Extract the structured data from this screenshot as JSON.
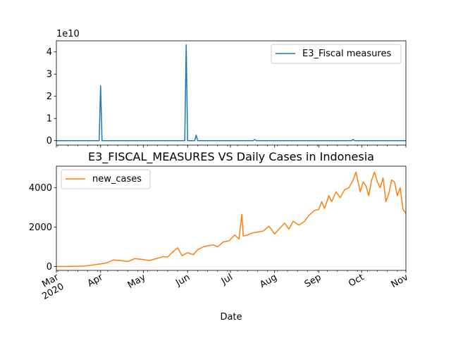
{
  "chart_data": [
    {
      "type": "line",
      "panel": "top",
      "title": "",
      "scale_label": "1e10",
      "y_tick_labels": [
        "0",
        "1",
        "2",
        "3",
        "4"
      ],
      "y_ticks": [
        0,
        1,
        2,
        3,
        4
      ],
      "ylim": [
        -0.2,
        4.5
      ],
      "x_tick_labels": [
        "",
        "",
        "",
        "",
        "",
        "",
        "",
        "",
        ""
      ],
      "legend": {
        "position": "upper right"
      },
      "series": [
        {
          "name": "E3_Fiscal measures",
          "color": "#1f77b4",
          "x": [
            "2020-03-01",
            "2020-03-31",
            "2020-04-01",
            "2020-04-02",
            "2020-05-30",
            "2020-05-31",
            "2020-06-01",
            "2020-06-06",
            "2020-06-07",
            "2020-06-08",
            "2020-07-17",
            "2020-07-18",
            "2020-07-19",
            "2020-09-24",
            "2020-09-25",
            "2020-09-26",
            "2020-11-01"
          ],
          "values": [
            0,
            0,
            2.47,
            0,
            0,
            4.32,
            0,
            0,
            0.25,
            0,
            0,
            0.05,
            0,
            0,
            0.05,
            0,
            0
          ]
        }
      ]
    },
    {
      "type": "line",
      "panel": "bottom",
      "title": "E3_FISCAL_MEASURES VS Daily Cases in Indonesia",
      "xlabel": "Date",
      "y_tick_labels": [
        "0",
        "2000",
        "4000"
      ],
      "y_ticks": [
        0,
        2000,
        4000
      ],
      "ylim": [
        -200,
        5100
      ],
      "x_tick_labels": [
        "Mar\n2020",
        "Apr",
        "May",
        "Jun",
        "Jul",
        "Aug",
        "Sep",
        "Oct",
        "Nov"
      ],
      "x_tick_dates": [
        "2020-03-01",
        "2020-04-01",
        "2020-05-01",
        "2020-06-01",
        "2020-07-01",
        "2020-08-01",
        "2020-09-01",
        "2020-10-01",
        "2020-11-01"
      ],
      "legend": {
        "position": "upper left"
      },
      "series": [
        {
          "name": "new_cases",
          "color": "#ff7f0e",
          "x": [
            "2020-03-01",
            "2020-03-10",
            "2020-03-20",
            "2020-03-25",
            "2020-04-01",
            "2020-04-05",
            "2020-04-10",
            "2020-04-15",
            "2020-04-20",
            "2020-04-25",
            "2020-05-01",
            "2020-05-05",
            "2020-05-10",
            "2020-05-15",
            "2020-05-18",
            "2020-05-21",
            "2020-05-25",
            "2020-05-28",
            "2020-06-01",
            "2020-06-05",
            "2020-06-08",
            "2020-06-12",
            "2020-06-15",
            "2020-06-19",
            "2020-06-22",
            "2020-06-26",
            "2020-06-30",
            "2020-07-04",
            "2020-07-07",
            "2020-07-09",
            "2020-07-10",
            "2020-07-13",
            "2020-07-16",
            "2020-07-20",
            "2020-07-24",
            "2020-07-28",
            "2020-08-01",
            "2020-08-04",
            "2020-08-08",
            "2020-08-11",
            "2020-08-14",
            "2020-08-18",
            "2020-08-22",
            "2020-08-25",
            "2020-08-29",
            "2020-09-01",
            "2020-09-03",
            "2020-09-05",
            "2020-09-08",
            "2020-09-10",
            "2020-09-13",
            "2020-09-16",
            "2020-09-19",
            "2020-09-22",
            "2020-09-25",
            "2020-09-27",
            "2020-09-30",
            "2020-10-02",
            "2020-10-04",
            "2020-10-06",
            "2020-10-08",
            "2020-10-10",
            "2020-10-12",
            "2020-10-14",
            "2020-10-16",
            "2020-10-18",
            "2020-10-20",
            "2020-10-22",
            "2020-10-24",
            "2020-10-26",
            "2020-10-28",
            "2020-10-30",
            "2020-11-01"
          ],
          "values": [
            0,
            2,
            20,
            60,
            130,
            180,
            330,
            300,
            250,
            400,
            350,
            300,
            400,
            500,
            480,
            700,
            950,
            550,
            700,
            600,
            850,
            1000,
            1050,
            1100,
            1000,
            1250,
            1300,
            1600,
            1400,
            2650,
            1550,
            1600,
            1700,
            1750,
            1800,
            2050,
            1650,
            1900,
            2200,
            1900,
            2300,
            2100,
            2300,
            2600,
            2850,
            2900,
            3300,
            2950,
            3600,
            3300,
            3800,
            3500,
            3900,
            4000,
            4400,
            4800,
            3800,
            4300,
            4100,
            3600,
            4400,
            4800,
            4300,
            4000,
            4500,
            3300,
            3700,
            4400,
            4300,
            3600,
            4000,
            2900,
            2700
          ]
        }
      ]
    }
  ]
}
